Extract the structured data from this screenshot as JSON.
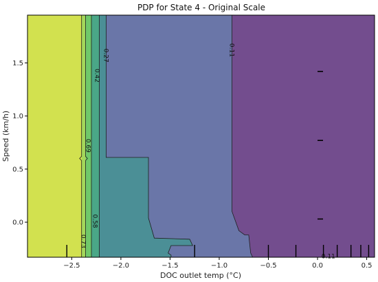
{
  "chart_data": {
    "type": "contour",
    "title": "PDP for State 4 - Original Scale",
    "xlabel": "DOC outlet temp (°C)",
    "ylabel": "Speed (km/h)",
    "xlim": [
      -2.95,
      0.58
    ],
    "ylim": [
      -0.33,
      1.95
    ],
    "x_ticks": [
      -2.5,
      -2.0,
      -1.5,
      -1.0,
      -0.5,
      0.0,
      0.5
    ],
    "x_tick_labels": [
      "−2.5",
      "−2.0",
      "−1.5",
      "−1.0",
      "−0.5",
      "0.0",
      "0.5"
    ],
    "y_ticks": [
      0.0,
      0.5,
      1.0,
      1.5
    ],
    "y_tick_labels": [
      "0.0",
      "0.5",
      "1.0",
      "1.5"
    ],
    "colors": {
      "band_high": "#d2e14f",
      "band_0_73": "#a4d75a",
      "band_0_69": "#70c86a",
      "band_0_58": "#4aa787",
      "band_0_42": "#4b8f96",
      "band_0_27": "#6a76a8",
      "band_0_11": "#734d8e"
    },
    "regions": [
      {
        "level": "band_0_11",
        "polygon": [
          [
            -0.87,
            1.95
          ],
          [
            0.58,
            1.95
          ],
          [
            0.58,
            -0.33
          ],
          [
            -0.66,
            -0.33
          ],
          [
            -0.68,
            -0.29
          ],
          [
            -0.7,
            -0.12
          ],
          [
            -0.74,
            -0.12
          ],
          [
            -0.8,
            -0.08
          ],
          [
            -0.87,
            0.1
          ]
        ]
      },
      {
        "level": "band_0_27",
        "polygon": [
          [
            -2.15,
            1.95
          ],
          [
            -0.87,
            1.95
          ],
          [
            -0.87,
            0.1
          ],
          [
            -0.8,
            -0.08
          ],
          [
            -0.74,
            -0.12
          ],
          [
            -0.7,
            -0.12
          ],
          [
            -0.68,
            -0.29
          ],
          [
            -0.66,
            -0.33
          ],
          [
            -2.15,
            -0.33
          ]
        ]
      },
      {
        "level": "band_0_42",
        "polygon": [
          [
            -2.22,
            1.95
          ],
          [
            -2.15,
            1.95
          ],
          [
            -2.15,
            0.61
          ],
          [
            -1.72,
            0.61
          ],
          [
            -1.72,
            0.04
          ],
          [
            -1.66,
            -0.15
          ],
          [
            -1.3,
            -0.16
          ],
          [
            -1.27,
            -0.22
          ],
          [
            -1.49,
            -0.22
          ],
          [
            -1.52,
            -0.29
          ],
          [
            -1.49,
            -0.31
          ],
          [
            -1.49,
            -0.33
          ],
          [
            -2.22,
            -0.33
          ]
        ]
      },
      {
        "level": "band_0_58",
        "polygon": [
          [
            -2.3,
            1.95
          ],
          [
            -2.22,
            1.95
          ],
          [
            -2.22,
            -0.33
          ],
          [
            -2.3,
            -0.33
          ]
        ]
      },
      {
        "level": "band_0_69",
        "polygon": [
          [
            -2.36,
            1.95
          ],
          [
            -2.3,
            1.95
          ],
          [
            -2.3,
            -0.33
          ],
          [
            -2.36,
            -0.33
          ]
        ]
      },
      {
        "level": "band_0_73",
        "polygon": [
          [
            -2.4,
            1.95
          ],
          [
            -2.36,
            1.95
          ],
          [
            -2.36,
            -0.33
          ],
          [
            -2.4,
            -0.33
          ]
        ]
      },
      {
        "level": "band_high",
        "polygon": [
          [
            -2.95,
            1.95
          ],
          [
            -2.4,
            1.95
          ],
          [
            -2.4,
            -0.33
          ],
          [
            -2.95,
            -0.33
          ]
        ]
      }
    ],
    "contour_lines": [
      {
        "label": "0.73",
        "points": [
          [
            -2.4,
            1.95
          ],
          [
            -2.4,
            0.62
          ],
          [
            -2.42,
            0.6
          ],
          [
            -2.4,
            0.58
          ],
          [
            -2.4,
            -0.33
          ]
        ]
      },
      {
        "label": "0.69",
        "points": [
          [
            -2.36,
            1.95
          ],
          [
            -2.36,
            0.62
          ],
          [
            -2.34,
            0.6
          ],
          [
            -2.36,
            0.58
          ],
          [
            -2.36,
            -0.33
          ]
        ]
      },
      {
        "label": "0.58",
        "points": [
          [
            -2.3,
            1.95
          ],
          [
            -2.3,
            -0.33
          ]
        ]
      },
      {
        "label": "0.42",
        "points": [
          [
            -2.22,
            1.95
          ],
          [
            -2.22,
            -0.33
          ]
        ]
      },
      {
        "label": "0.27",
        "points": [
          [
            -2.15,
            1.95
          ],
          [
            -2.15,
            0.61
          ],
          [
            -1.72,
            0.61
          ],
          [
            -1.72,
            0.04
          ],
          [
            -1.66,
            -0.15
          ],
          [
            -1.3,
            -0.16
          ],
          [
            -1.27,
            -0.22
          ],
          [
            -1.49,
            -0.22
          ],
          [
            -1.52,
            -0.29
          ],
          [
            -1.49,
            -0.31
          ],
          [
            -1.49,
            -0.33
          ]
        ]
      },
      {
        "label": "0.11",
        "points": [
          [
            -0.87,
            1.95
          ],
          [
            -0.87,
            0.1
          ],
          [
            -0.8,
            -0.08
          ],
          [
            -0.74,
            -0.12
          ],
          [
            -0.7,
            -0.12
          ],
          [
            -0.68,
            -0.29
          ],
          [
            -0.66,
            -0.33
          ]
        ]
      }
    ],
    "contour_labels": [
      {
        "text": "0.27",
        "x": -2.15,
        "y": 1.57,
        "rotate": 90
      },
      {
        "text": "0.42",
        "x": -2.24,
        "y": 1.38,
        "rotate": 90
      },
      {
        "text": "0.69",
        "x": -2.33,
        "y": 0.72,
        "rotate": 90
      },
      {
        "text": "0.58",
        "x": -2.26,
        "y": 0.01,
        "rotate": 90
      },
      {
        "text": "0.73",
        "x": -2.38,
        "y": -0.18,
        "rotate": 90
      },
      {
        "text": "0.11",
        "x": -0.87,
        "y": 1.62,
        "rotate": 90
      },
      {
        "text": "0.11",
        "x": 0.11,
        "y": -0.32,
        "rotate": 0
      }
    ],
    "rug_x": [
      -2.55,
      -1.25,
      -0.5,
      -0.22,
      0.06,
      0.2,
      0.34,
      0.44,
      0.52
    ],
    "rug_y": [
      1.42,
      0.77,
      0.03
    ]
  }
}
